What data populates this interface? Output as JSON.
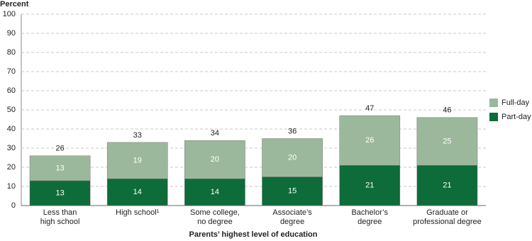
{
  "chart_data": {
    "type": "stacked_bar",
    "y_label": "Percent",
    "x_label": "Parents’ highest level of education",
    "categories": [
      [
        "Less than",
        "high school"
      ],
      [
        "High school¹"
      ],
      [
        "Some college,",
        "no degree"
      ],
      [
        "Associate’s",
        "degree"
      ],
      [
        "Bachelor’s",
        "degree"
      ],
      [
        "Graduate or",
        "professional degree"
      ]
    ],
    "series": [
      {
        "name": "Part-day",
        "color": "#0e6b3a",
        "values": [
          13,
          14,
          14,
          15,
          21,
          21
        ]
      },
      {
        "name": "Full-day",
        "color": "#9cb89c",
        "values": [
          13,
          19,
          20,
          20,
          26,
          25
        ]
      }
    ],
    "totals": [
      26,
      33,
      34,
      36,
      47,
      46
    ],
    "ylim": [
      0,
      100
    ],
    "yticks": [
      0,
      10,
      20,
      30,
      40,
      50,
      60,
      70,
      80,
      90,
      100
    ],
    "grid": true
  }
}
